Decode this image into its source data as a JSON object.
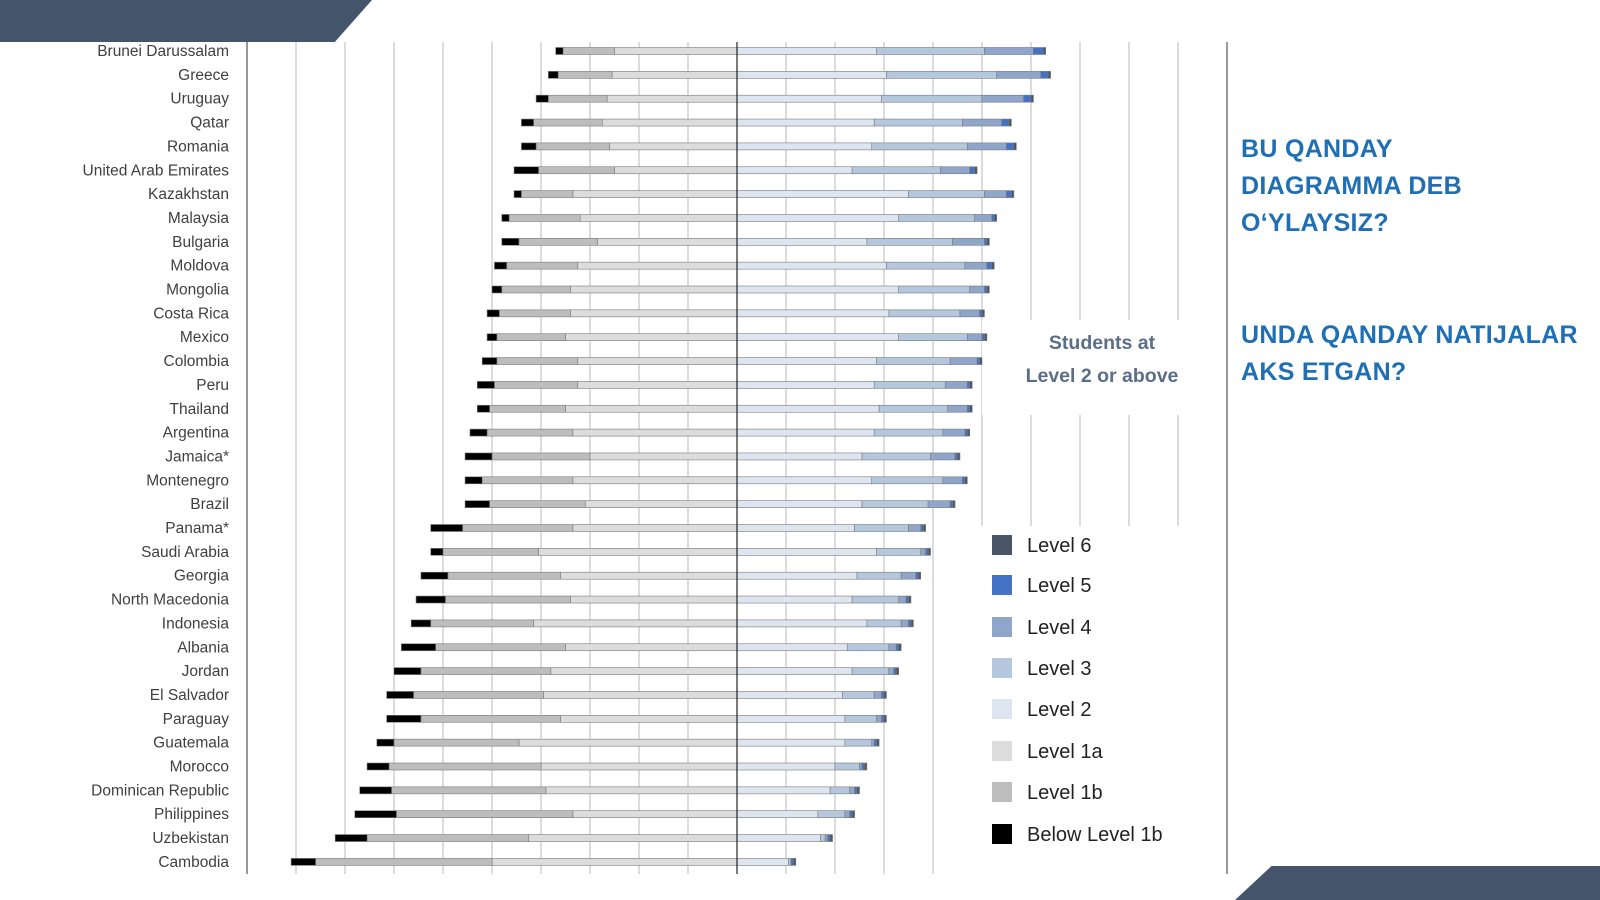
{
  "questions": {
    "q1": "BU QANDAY DIAGRAMMA DEB O‘YLAYSIZ?",
    "q2": "UNDA QANDAY NATIJALAR AKS ETGAN?"
  },
  "chart_data": {
    "type": "bar",
    "annotation": "Students at Level 2 or above",
    "legend_position": "right",
    "levels": [
      "Level 6",
      "Level 5",
      "Level 4",
      "Level 3",
      "Level 2",
      "Level 1a",
      "Level 1b",
      "Below Level 1b"
    ],
    "colors": {
      "Level 6": "#4a5666",
      "Level 5": "#4472c4",
      "Level 4": "#8fa5c9",
      "Level 3": "#b4c7dc",
      "Level 2": "#dde6f0",
      "Level 1a": "#dcdcdc",
      "Level 1b": "#bdbdbd",
      "Below Level 1b": "#000000",
      "border": "#7a7a7a",
      "grid": "#b8b8b8",
      "label_text": "#404040",
      "annotation_text": "#5a6e88"
    },
    "categories": [
      "Brunei Darussalam",
      "Greece",
      "Uruguay",
      "Qatar",
      "Romania",
      "United Arab Emirates",
      "Kazakhstan",
      "Malaysia",
      "Bulgaria",
      "Moldova",
      "Mongolia",
      "Costa Rica",
      "Mexico",
      "Colombia",
      "Peru",
      "Thailand",
      "Argentina",
      "Jamaica*",
      "Montenegro",
      "Brazil",
      "Panama*",
      "Saudi Arabia",
      "Georgia",
      "North Macedonia",
      "Indonesia",
      "Albania",
      "Jordan",
      "El Salvador",
      "Paraguay",
      "Guatemala",
      "Morocco",
      "Dominican Republic",
      "Philippines",
      "Uzbekistan",
      "Cambodia"
    ],
    "values": {
      "Below Level 1b": [
        1.5,
        2,
        2.5,
        2.5,
        3,
        5,
        1.5,
        1.5,
        3.5,
        2.5,
        2,
        2.5,
        2,
        3,
        3.5,
        2.5,
        3.5,
        5.5,
        3.5,
        5,
        6.5,
        2.5,
        5.5,
        6,
        4,
        7,
        5.5,
        5.5,
        7,
        3.5,
        4.5,
        6.5,
        8.5,
        6.5,
        5
      ],
      "Level 1b": [
        10.5,
        11,
        12,
        14,
        15,
        15.5,
        10.5,
        14.5,
        16,
        14.5,
        14,
        14.5,
        14,
        16.5,
        17,
        15.5,
        17.5,
        20,
        18.5,
        19.5,
        22.5,
        19.5,
        23,
        25.5,
        21,
        26.5,
        26.5,
        26.5,
        28.5,
        25.5,
        31,
        31.5,
        36,
        33,
        36
      ],
      "Level 1a": [
        25,
        25.5,
        26.5,
        27.5,
        26,
        25,
        33.5,
        32,
        28.5,
        32.5,
        34,
        34,
        35,
        32.5,
        32.5,
        35,
        33.5,
        30,
        33.5,
        31,
        33.5,
        40.5,
        36,
        34,
        41.5,
        35,
        38,
        39.5,
        36,
        44.5,
        40,
        39,
        33.5,
        42.5,
        50
      ],
      "Level 2": [
        28.5,
        30.5,
        29.5,
        28,
        27.5,
        23.5,
        35,
        33,
        26.5,
        30.5,
        33,
        31,
        33,
        28.5,
        28,
        29,
        28,
        25.5,
        27.5,
        25.5,
        24,
        28.5,
        24.5,
        23.5,
        26.5,
        22.5,
        23.5,
        21.5,
        22,
        22,
        20,
        19,
        16.5,
        17,
        10.5
      ],
      "Level 3": [
        22,
        22.5,
        20.5,
        18,
        19.5,
        18,
        15.5,
        15.5,
        17.5,
        16,
        14.5,
        14.5,
        14,
        15,
        14.5,
        14,
        14,
        14,
        14.5,
        13.5,
        11,
        9,
        9,
        9.5,
        7,
        8.5,
        7.5,
        6.5,
        6.5,
        5.5,
        5,
        4,
        5.5,
        1,
        0.5
      ],
      "Level 4": [
        10,
        9,
        8.5,
        8,
        8,
        6,
        4.5,
        3.5,
        6.5,
        4.5,
        3,
        4,
        3,
        5.5,
        4.5,
        4,
        4.5,
        5,
        4,
        4.5,
        2.5,
        1,
        3,
        1.5,
        1.5,
        1.5,
        1,
        1.5,
        1,
        0.5,
        0.5,
        1,
        1,
        0.5,
        0
      ],
      "Level 5": [
        2,
        1.5,
        1.5,
        1.5,
        1.5,
        1,
        1,
        0.5,
        0.5,
        1,
        0.5,
        0.5,
        0.5,
        0.5,
        0.5,
        0.5,
        0.5,
        0.5,
        0.5,
        0.5,
        0.5,
        0.5,
        0.5,
        0.5,
        0.5,
        0.5,
        0.5,
        0.5,
        0.5,
        0.5,
        0.5,
        0.5,
        0.5,
        0.5,
        0.5
      ],
      "Level 6": [
        0.5,
        0.5,
        0.5,
        0.5,
        0.5,
        0.5,
        0.5,
        0.5,
        0.5,
        0.5,
        0.5,
        0.5,
        0.5,
        0.5,
        0.5,
        0.5,
        0.5,
        0.5,
        0.5,
        0.5,
        0.5,
        0.5,
        0.5,
        0.5,
        0.5,
        0.5,
        0.5,
        0.5,
        0.5,
        0.5,
        0.5,
        0.5,
        0.5,
        0.5,
        0.5
      ]
    },
    "xlim": [
      -100,
      100
    ],
    "x_grid_step": 10,
    "grid": true
  }
}
